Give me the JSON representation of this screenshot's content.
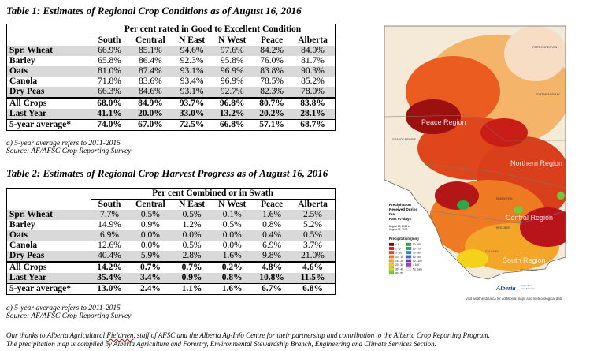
{
  "table1": {
    "title": "Table 1: Estimates of Regional Crop Conditions as of August 16, 2016",
    "span_header": "Per cent rated in Good to Excellent Condition",
    "columns": [
      "South",
      "Central",
      "N East",
      "N West",
      "Peace",
      "Alberta"
    ],
    "rows": [
      {
        "label": "Spr. Wheat",
        "values": [
          "66.9%",
          "85.1%",
          "94.6%",
          "97.6%",
          "84.2%",
          "84.0%"
        ]
      },
      {
        "label": "Barley",
        "values": [
          "65.8%",
          "86.4%",
          "92.3%",
          "95.8%",
          "76.0%",
          "81.7%"
        ]
      },
      {
        "label": "Oats",
        "values": [
          "81.0%",
          "87.4%",
          "93.1%",
          "96.9%",
          "83.8%",
          "90.3%"
        ]
      },
      {
        "label": "Canola",
        "values": [
          "71.8%",
          "83.6%",
          "93.4%",
          "96.9%",
          "78.5%",
          "85.2%"
        ]
      },
      {
        "label": "Dry Peas",
        "values": [
          "66.3%",
          "84.6%",
          "93.1%",
          "92.7%",
          "82.3%",
          "78.0%"
        ]
      }
    ],
    "summary": [
      {
        "label": "All Crops",
        "values": [
          "68.0%",
          "84.9%",
          "93.7%",
          "96.8%",
          "80.7%",
          "83.8%"
        ]
      },
      {
        "label": "Last Year",
        "values": [
          "41.1%",
          "20.0%",
          "33.0%",
          "13.2%",
          "20.2%",
          "28.1%"
        ]
      },
      {
        "label": "5-year average*",
        "values": [
          "74.0%",
          "67.0%",
          "72.5%",
          "66.8%",
          "57.1%",
          "68.7%"
        ]
      }
    ],
    "notes": [
      "a) 5-year average refers to 2011-2015",
      "Source: AF/AFSC Crop Reporting Survey"
    ]
  },
  "table2": {
    "title": "Table 2: Estimates of Regional Crop Harvest Progress as of August 16, 2016",
    "span_header": "Per cent Combined or in Swath",
    "columns": [
      "South",
      "Central",
      "N East",
      "N West",
      "Peace",
      "Alberta"
    ],
    "rows": [
      {
        "label": "Spr. Wheat",
        "values": [
          "7.7%",
          "0.5%",
          "0.5%",
          "0.1%",
          "1.6%",
          "2.5%"
        ]
      },
      {
        "label": "Barley",
        "values": [
          "14.9%",
          "0.9%",
          "1.2%",
          "0.5%",
          "0.8%",
          "5.2%"
        ]
      },
      {
        "label": "Oats",
        "values": [
          "6.9%",
          "0.0%",
          "0.0%",
          "0.0%",
          "0.4%",
          "0.5%"
        ]
      },
      {
        "label": "Canola",
        "values": [
          "12.6%",
          "0.0%",
          "0.5%",
          "0.0%",
          "6.9%",
          "3.7%"
        ]
      },
      {
        "label": "Dry Peas",
        "values": [
          "40.4%",
          "5.9%",
          "2.8%",
          "1.6%",
          "9.8%",
          "21.0%"
        ]
      }
    ],
    "summary": [
      {
        "label": "All Crops",
        "values": [
          "14.2%",
          "0.7%",
          "0.7%",
          "0.2%",
          "4.8%",
          "4.6%"
        ]
      },
      {
        "label": "Last Year",
        "values": [
          "35.4%",
          "3.4%",
          "0.9%",
          "0.8%",
          "10.8%",
          "11.5%"
        ]
      },
      {
        "label": "5-year average*",
        "values": [
          "13.0%",
          "2.4%",
          "1.1%",
          "1.6%",
          "6.7%",
          "6.8%"
        ]
      }
    ],
    "notes": [
      "a) 5-year average refers to 2011-2015",
      "Source: AF/AFSC Crop Reporting Survey"
    ]
  },
  "footer": {
    "line1_a": "Our thanks to Alberta Agricultural ",
    "line1_u": "Fieldmen",
    "line1_b": ", staff of AFSC and the Alberta Ag-Info Centre for their partnership and contribution to the Alberta Crop Reporting Program.",
    "line2": "The precipitation map is compiled by Alberta Agriculture and Forestry, Environmental Stewardship Branch, Engineering and Climate Services Section."
  },
  "map": {
    "legend_title_1": "Precipitation",
    "legend_title_2": "Received During",
    "legend_title_3": "the",
    "legend_title_4": "Past 07-days",
    "date_1": "August 10, 2016 to",
    "date_2": "August 16, 2016",
    "legend_heading": "Precipitation (mm)",
    "legend_left": [
      "< 1",
      "1 - 5",
      "5 - 10",
      "10 - 15",
      "15 - 20",
      "20 - 30",
      "30 - 40",
      "40 - 50"
    ],
    "legend_right": [
      "50 - 60",
      "60 - 70",
      "70 - 80",
      "80 - 90",
      "90 - 100",
      "> 100",
      "No Data"
    ],
    "legend_colors_left": [
      "#7a0000",
      "#c81a1a",
      "#e8451c",
      "#f07b24",
      "#f5a623",
      "#f5d21a",
      "#c8e619",
      "#6fc93a"
    ],
    "legend_colors_right": [
      "#2aa84a",
      "#1f9f8f",
      "#1f8fc8",
      "#3a62c8",
      "#6a3ac8",
      "#b03ac8",
      "#ffffff"
    ],
    "regions": [
      "Peace Region",
      "Northern Region",
      "Central Region",
      "South Region"
    ],
    "places": [
      "FORT CHIPEWYAN",
      "FORT MCMURRAY",
      "GRANDE PRAIRIE",
      "EDMONTON",
      "RED DEER",
      "CALGARY",
      "LETHBRIDGE"
    ],
    "credit": "Visit weatherdata.ca for additional maps and meteorological data",
    "logo": "Alberta",
    "logo_sub_1": "Agriculture",
    "logo_sub_2": "and Forestry"
  }
}
